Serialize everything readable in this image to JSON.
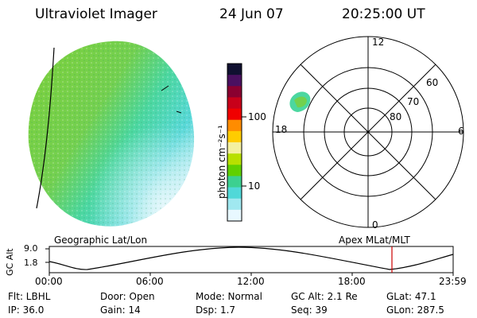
{
  "header": {
    "instrument": "Ultraviolet Imager",
    "date": "24 Jun 07",
    "time": "20:25:00 UT"
  },
  "colorbar": {
    "unit_label": "photon cm⁻²s⁻¹",
    "ticks": [
      "100",
      "10"
    ],
    "colors": [
      "#101030",
      "#4a1060",
      "#8a0030",
      "#c8001a",
      "#f00000",
      "#ff8c00",
      "#ffcc00",
      "#f4f0a0",
      "#b8e000",
      "#60d000",
      "#3cd090",
      "#50d8d8",
      "#a0e8f0",
      "#e8f8ff"
    ]
  },
  "polar_plot": {
    "mlt_labels": {
      "top": "12",
      "right": "6",
      "bottom": "0",
      "left": "18"
    },
    "lat_labels": [
      "60",
      "70",
      "80"
    ]
  },
  "timeline": {
    "left_label": "Geographic Lat/Lon",
    "right_label": "Apex MLat/MLT",
    "y_axis_label": "GC Alt",
    "y_ticks": [
      "9.0",
      "1.8"
    ],
    "x_ticks": [
      "00:00",
      "06:00",
      "12:00",
      "18:00",
      "23:59"
    ],
    "current_time_color": "#cc0000"
  },
  "info": {
    "flt": "Flt: LBHL",
    "ip": "IP: 36.0",
    "door": "Door: Open",
    "gain": "Gain: 14",
    "mode": "Mode: Normal",
    "dsp": "Dsp:   1.7",
    "gcalt": "GC Alt: 2.1 Re",
    "seq": "Seq: 39",
    "glat": "GLat:  47.1",
    "glon": "GLon: 287.5"
  }
}
